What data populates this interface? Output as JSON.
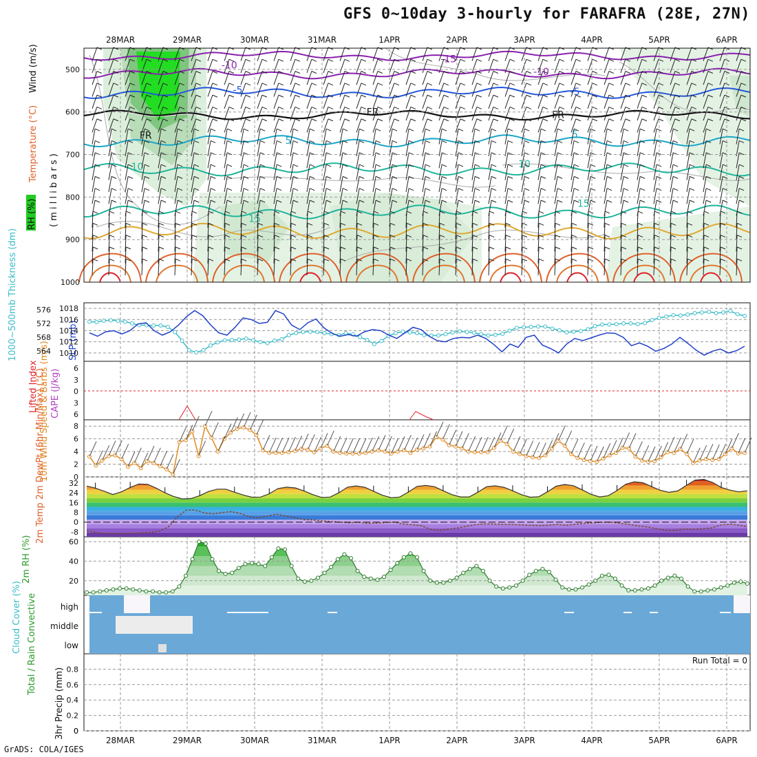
{
  "title": "GFS 0~10day 3-hourly for FARAFRA (28E, 27N)",
  "credit": "GrADS: COLA/IGES",
  "run_total": "Run Total = 0",
  "colors": {
    "purple": "#8a1fb0",
    "blue": "#2255dd",
    "cyan": "#1aa6c8",
    "teal": "#1fb59a",
    "green": "#1c9c3a",
    "orange": "#e08a20",
    "darkorange": "#e0602a",
    "red": "#e0202a",
    "slp": "#1f3fc8",
    "thick": "#3bbcc8",
    "wind": "#e08a20",
    "rh": "#2a9a2a",
    "cloud": "#6aa8d8",
    "grid": "#999999"
  },
  "chart_data": [
    {
      "id": "upper",
      "type": "contour-timeseries",
      "title": "",
      "x": [
        "28MAR",
        "29MAR",
        "30MAR",
        "31MAR",
        "1APR",
        "2APR",
        "3APR",
        "4APR",
        "5APR",
        "6APR"
      ],
      "ylabel": "( m i l l i b a r s )",
      "yticks": [
        "500",
        "600",
        "700",
        "800",
        "900",
        "1000"
      ],
      "ylim": [
        450,
        1000
      ],
      "legend": [
        "RH (%)",
        "Temperature (°C)",
        "Wind (m/s)"
      ],
      "contour_labels": [
        {
          "text": "-15",
          "color": "purple",
          "x": "1APR 21Z",
          "p": 475
        },
        {
          "text": "-10",
          "color": "purple",
          "x": "29MAR 15Z",
          "p": 490
        },
        {
          "text": "-10",
          "color": "purple",
          "x": "3APR 06Z",
          "p": 505
        },
        {
          "text": "-5",
          "color": "blue",
          "x": "29MAR 18Z",
          "p": 548
        },
        {
          "text": "-5",
          "color": "blue",
          "x": "3APR 18Z",
          "p": 552
        },
        {
          "text": "FR",
          "color": "black",
          "x": "31MAR 18Z",
          "p": 600
        },
        {
          "text": "FR",
          "color": "black",
          "x": "3APR 12Z",
          "p": 606
        },
        {
          "text": "FR",
          "color": "black",
          "x": "28MAR 09Z",
          "p": 655
        },
        {
          "text": "5",
          "color": "cyan",
          "x": "30MAR 12Z",
          "p": 667
        },
        {
          "text": "5",
          "color": "cyan",
          "x": "3APR 18Z",
          "p": 652
        },
        {
          "text": "10",
          "color": "teal",
          "x": "28MAR 06Z",
          "p": 728
        },
        {
          "text": "10",
          "color": "teal",
          "x": "2APR 24Z",
          "p": 722
        },
        {
          "text": "15",
          "color": "teal",
          "x": "29MAR 24Z",
          "p": 850
        },
        {
          "text": "15",
          "color": "teal",
          "x": "3APR 21Z",
          "p": 815
        }
      ],
      "rh_labels": [
        "10",
        "30",
        "10",
        "30",
        "10"
      ]
    },
    {
      "id": "slp",
      "type": "line",
      "ylabel_left": "1000~500mb Thickness (dm)",
      "ylabel_right": "SLP (mb)",
      "yticks_thick": [
        "564",
        "568",
        "572",
        "576"
      ],
      "yticks_slp": [
        "1010",
        "1012",
        "1014",
        "1016",
        "1018"
      ],
      "series": [
        {
          "name": "SLP (mb)",
          "values": [
            1013.6,
            1013.0,
            1013.8,
            1014.0,
            1013.4,
            1014.0,
            1015.2,
            1015.4,
            1014.0,
            1013.2,
            1013.8,
            1015.0,
            1016.5,
            1017.6,
            1016.7,
            1015.0,
            1013.6,
            1013.2,
            1014.6,
            1016.3,
            1016.0,
            1015.3,
            1015.5,
            1017.6,
            1017.0,
            1015.0,
            1014.2,
            1015.4,
            1016.1,
            1014.5,
            1013.5,
            1013.0,
            1013.3,
            1013.0,
            1013.8,
            1014.2,
            1014.0,
            1013.2,
            1012.6,
            1013.6,
            1014.6,
            1014.2,
            1013.0,
            1012.2,
            1012.0,
            1012.6,
            1012.8,
            1012.7,
            1013.2,
            1012.6,
            1011.5,
            1010.2,
            1011.6,
            1011.0,
            1012.8,
            1013.2,
            1011.4,
            1010.8,
            1010.0,
            1011.6,
            1012.6,
            1012.2,
            1012.7,
            1013.2,
            1013.6,
            1013.5,
            1012.8,
            1011.3,
            1011.8,
            1011.2,
            1010.3,
            1010.8,
            1011.6,
            1012.8,
            1011.7,
            1010.5,
            1009.6,
            1010.3,
            1010.7,
            1010.0,
            1010.4,
            1011.2
          ]
        },
        {
          "name": "Thickness (dm)",
          "values": [
            572.5,
            572.4,
            572.8,
            572.9,
            572.8,
            572.5,
            572.0,
            571.5,
            571.5,
            571.4,
            571.4,
            571.0,
            569.5,
            567.0,
            564.2,
            563.6,
            564.2,
            565.6,
            566.5,
            567.1,
            567.2,
            567.3,
            567.6,
            567.1,
            566.6,
            566.3,
            567.0,
            567.4,
            568.6,
            569.2,
            569.5,
            569.6,
            569.5,
            569.2,
            568.9,
            568.6,
            569.2,
            568.8,
            568.0,
            567.2,
            566.0,
            566.9,
            568.4,
            569.2,
            569.6,
            569.4,
            569.2,
            568.6,
            568.5,
            568.5,
            568.9,
            569.4,
            569.7,
            569.5,
            569.3,
            568.9,
            568.5,
            568.7,
            569.0,
            569.9,
            570.7,
            570.9,
            571.0,
            571.1,
            571.1,
            570.5,
            570.0,
            569.4,
            569.6,
            569.8,
            570.3,
            571.2,
            571.7,
            571.7,
            571.8,
            572.0,
            572.0,
            571.8,
            572.1,
            573.0,
            573.6,
            574.0,
            574.4,
            574.3,
            574.6,
            575.0,
            575.2,
            575.4,
            575.0,
            575.2,
            575.6,
            574.7,
            574.2
          ]
        }
      ]
    },
    {
      "id": "cape",
      "type": "line",
      "ylabel_left": "Lifted Index",
      "ylabel_right": "CAPE (J/kg)",
      "yticks": [
        "6",
        "3",
        "0",
        "3",
        "6"
      ]
    },
    {
      "id": "wind10",
      "type": "line",
      "ylabel": "10m Wind Speed & Barbs (m/s)",
      "yticks": [
        "0",
        "2",
        "4",
        "6",
        "8"
      ],
      "ylim": [
        0,
        9
      ],
      "values": [
        3.2,
        1.8,
        2.6,
        3.3,
        3.4,
        2.8,
        1.6,
        2.2,
        1.4,
        2.5,
        2.2,
        1.7,
        1.2,
        0.4,
        5.5,
        5.8,
        7.2,
        3.3,
        8.0,
        6.2,
        4.0,
        6.0,
        7.0,
        7.6,
        7.8,
        7.4,
        6.6,
        4.2,
        3.8,
        3.8,
        3.8,
        3.9,
        4.1,
        4.4,
        4.3,
        3.9,
        4.5,
        4.9,
        4.0,
        3.8,
        3.7,
        3.7,
        3.7,
        3.8,
        4.0,
        4.2,
        4.0,
        3.7,
        4.0,
        4.2,
        3.8,
        4.3,
        4.5,
        4.8,
        6.3,
        5.9,
        5.0,
        4.8,
        4.5,
        4.0,
        3.9,
        3.9,
        3.9,
        4.6,
        5.7,
        5.2,
        4.0,
        3.6,
        3.3,
        3.1,
        3.0,
        3.4,
        4.5,
        5.7,
        4.9,
        3.6,
        3.0,
        2.7,
        2.5,
        2.4,
        2.9,
        3.4,
        3.8,
        4.6,
        4.5,
        3.2,
        2.6,
        2.4,
        2.5,
        3.1,
        3.9,
        3.8,
        4.4,
        3.6,
        2.2,
        2.6,
        2.8,
        2.7,
        2.8,
        3.6,
        4.5,
        3.7,
        3.8
      ]
    },
    {
      "id": "t2m",
      "type": "area",
      "ylabel": "2m Temp 2m DewPt (6hr Min/Max) (°C)",
      "yticks": [
        "-8",
        "0",
        "8",
        "16",
        "24",
        "32"
      ],
      "ylim": [
        -12,
        37
      ],
      "series": [
        {
          "name": "2m Temp",
          "values": [
            29.5,
            27.8,
            25.3,
            22.6,
            24.8,
            28.4,
            31.2,
            31.0,
            27.8,
            24.0,
            21.0,
            19.0,
            19.3,
            21.6,
            25.0,
            27.0,
            27.0,
            24.5,
            22.2,
            20.4,
            20.5,
            23.2,
            27.5,
            28.6,
            28.0,
            25.5,
            22.5,
            20.2,
            20.5,
            24.0,
            28.6,
            29.6,
            28.5,
            25.3,
            22.0,
            20.0,
            20.5,
            24.6,
            29.2,
            30.0,
            29.0,
            25.7,
            22.5,
            20.6,
            20.6,
            24.5,
            29.0,
            29.7,
            28.5,
            25.6,
            22.5,
            20.4,
            20.7,
            24.8,
            29.4,
            30.8,
            29.8,
            26.4,
            22.8,
            20.6,
            21.6,
            25.8,
            31.0,
            33.0,
            32.2,
            29.0,
            26.0,
            24.4,
            25.5,
            30.2,
            34.4,
            35.0,
            32.5,
            28.4,
            26.2,
            24.8,
            25.6
          ]
        },
        {
          "name": "2m DewPt",
          "values": [
            -7.0,
            -8.5,
            -9.2,
            -9.5,
            -9.3,
            -9.0,
            -8.8,
            -8.6,
            -7.5,
            -4.0,
            4.2,
            9.8,
            9.8,
            7.5,
            6.8,
            7.8,
            8.6,
            7.0,
            4.2,
            3.6,
            5.0,
            6.4,
            5.0,
            3.6,
            2.0,
            1.8,
            1.0,
            0.4,
            0.0,
            -0.6,
            -0.2,
            -1.0,
            -0.8,
            -0.4,
            0.0,
            -1.6,
            -2.2,
            -3.0,
            -6.0,
            -6.8,
            -5.8,
            -4.8,
            -3.4,
            -2.0,
            -1.4,
            -1.6,
            -1.8,
            -1.9,
            -2.2,
            -2.6,
            -2.8,
            -2.6,
            -1.8,
            -2.6,
            -1.6,
            -1.0,
            -0.6,
            -0.2,
            -0.1,
            -1.0,
            -2.0,
            -3.2,
            -4.0,
            -5.4,
            -6.6,
            -6.8,
            -5.6,
            -5.8,
            -5.4,
            -4.8,
            -2.6,
            -1.6,
            -2.4,
            -3.8
          ]
        }
      ]
    },
    {
      "id": "rh2m",
      "type": "area",
      "ylabel": "2m RH (%)",
      "yticks": [
        "20",
        "40",
        "60"
      ],
      "ylim": [
        5,
        65
      ],
      "values": [
        8,
        8,
        9,
        10,
        11,
        12,
        12,
        11,
        10,
        9,
        9,
        8,
        8,
        9,
        14,
        25,
        42,
        60,
        58,
        42,
        30,
        27,
        28,
        33,
        37,
        38,
        37,
        35,
        44,
        53,
        52,
        35,
        22,
        19,
        20,
        23,
        28,
        34,
        42,
        47,
        43,
        30,
        24,
        22,
        21,
        24,
        31,
        38,
        44,
        48,
        44,
        30,
        20,
        18,
        18,
        20,
        23,
        28,
        32,
        35,
        30,
        20,
        14,
        12,
        13,
        15,
        20,
        26,
        30,
        32,
        29,
        21,
        13,
        11,
        11,
        13,
        16,
        20,
        25,
        26,
        22,
        15,
        10,
        10,
        11,
        12,
        15,
        20,
        23,
        25,
        22,
        14,
        9,
        9,
        10,
        11,
        13,
        15,
        18,
        19,
        17
      ]
    },
    {
      "id": "cloud",
      "type": "heatmap",
      "ylabel": "Cloud Cover (%)",
      "yticks": [
        "high",
        "middle",
        "low"
      ]
    },
    {
      "id": "precip",
      "type": "bar",
      "ylabel": "3hr Precip (mm)",
      "ylabel_left": "Total / Rain Convective",
      "yticks": [
        "0",
        "0.2",
        "0.4",
        "0.6",
        "0.8"
      ],
      "ylim": [
        0,
        1
      ]
    }
  ]
}
